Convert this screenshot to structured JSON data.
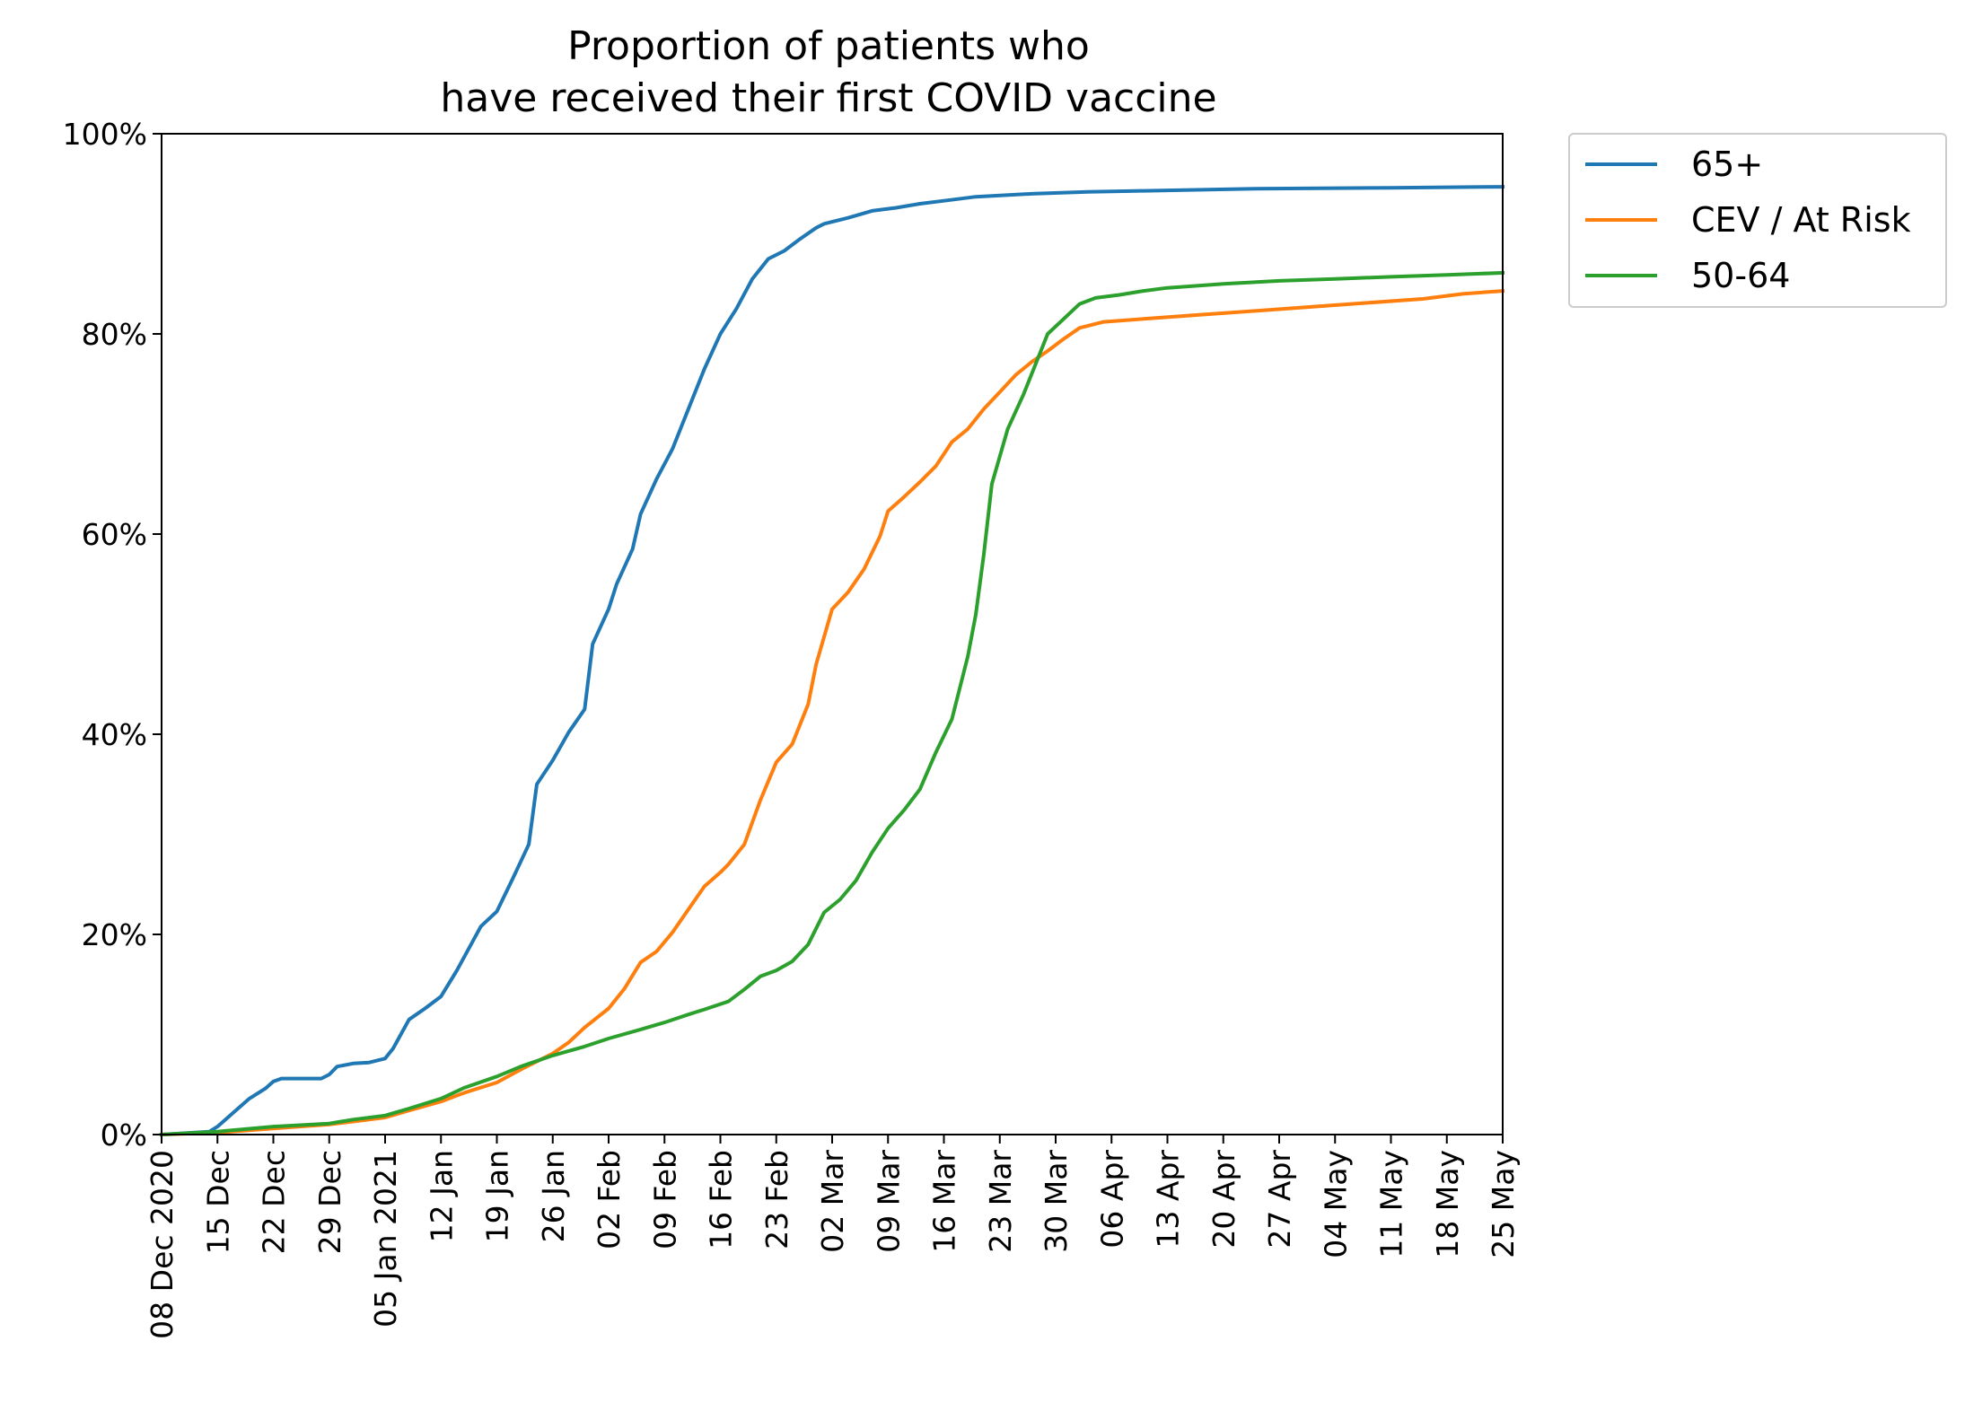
{
  "chart_data": {
    "type": "line",
    "title": [
      "Proportion of patients who",
      "have received their first COVID vaccine"
    ],
    "xlabel": "",
    "ylabel": "",
    "x_ticks": [
      {
        "date": "2020-12-08",
        "label": "08 Dec 2020"
      },
      {
        "date": "2020-12-15",
        "label": "15 Dec"
      },
      {
        "date": "2020-12-22",
        "label": "22 Dec"
      },
      {
        "date": "2020-12-29",
        "label": "29 Dec"
      },
      {
        "date": "2021-01-05",
        "label": "05 Jan 2021"
      },
      {
        "date": "2021-01-12",
        "label": "12 Jan"
      },
      {
        "date": "2021-01-19",
        "label": "19 Jan"
      },
      {
        "date": "2021-01-26",
        "label": "26 Jan"
      },
      {
        "date": "2021-02-02",
        "label": "02 Feb"
      },
      {
        "date": "2021-02-09",
        "label": "09 Feb"
      },
      {
        "date": "2021-02-16",
        "label": "16 Feb"
      },
      {
        "date": "2021-02-23",
        "label": "23 Feb"
      },
      {
        "date": "2021-03-02",
        "label": "02 Mar"
      },
      {
        "date": "2021-03-09",
        "label": "09 Mar"
      },
      {
        "date": "2021-03-16",
        "label": "16 Mar"
      },
      {
        "date": "2021-03-23",
        "label": "23 Mar"
      },
      {
        "date": "2021-03-30",
        "label": "30 Mar"
      },
      {
        "date": "2021-04-06",
        "label": "06 Apr"
      },
      {
        "date": "2021-04-13",
        "label": "13 Apr"
      },
      {
        "date": "2021-04-20",
        "label": "20 Apr"
      },
      {
        "date": "2021-04-27",
        "label": "27 Apr"
      },
      {
        "date": "2021-05-04",
        "label": "04 May"
      },
      {
        "date": "2021-05-11",
        "label": "11 May"
      },
      {
        "date": "2021-05-18",
        "label": "18 May"
      },
      {
        "date": "2021-05-25",
        "label": "25 May"
      }
    ],
    "xlim": [
      "2020-12-08",
      "2021-05-25"
    ],
    "ylim": [
      0,
      100
    ],
    "y_ticks": [
      {
        "value": 0,
        "label": "0%"
      },
      {
        "value": 20,
        "label": "20%"
      },
      {
        "value": 40,
        "label": "40%"
      },
      {
        "value": 60,
        "label": "60%"
      },
      {
        "value": 80,
        "label": "80%"
      },
      {
        "value": 100,
        "label": "100%"
      }
    ],
    "grid": false,
    "legend_position": "outside top-right",
    "series": [
      {
        "name": "65+",
        "color": "#1f77b4",
        "points": [
          [
            "2020-12-08",
            0
          ],
          [
            "2020-12-14",
            0.3
          ],
          [
            "2020-12-15",
            0.8
          ],
          [
            "2020-12-17",
            2.2
          ],
          [
            "2020-12-19",
            3.6
          ],
          [
            "2020-12-21",
            4.6
          ],
          [
            "2020-12-22",
            5.3
          ],
          [
            "2020-12-23",
            5.6
          ],
          [
            "2020-12-28",
            5.6
          ],
          [
            "2020-12-29",
            6
          ],
          [
            "2020-12-30",
            6.8
          ],
          [
            "2021-01-01",
            7.1
          ],
          [
            "2021-01-03",
            7.2
          ],
          [
            "2021-01-05",
            7.6
          ],
          [
            "2021-01-06",
            8.6
          ],
          [
            "2021-01-08",
            11.5
          ],
          [
            "2021-01-10",
            12.6
          ],
          [
            "2021-01-12",
            13.8
          ],
          [
            "2021-01-14",
            16.4
          ],
          [
            "2021-01-17",
            20.8
          ],
          [
            "2021-01-19",
            22.3
          ],
          [
            "2021-01-21",
            25.6
          ],
          [
            "2021-01-23",
            29
          ],
          [
            "2021-01-24",
            35
          ],
          [
            "2021-01-26",
            37.4
          ],
          [
            "2021-01-28",
            40.2
          ],
          [
            "2021-01-30",
            42.5
          ],
          [
            "2021-01-31",
            49
          ],
          [
            "2021-02-02",
            52.5
          ],
          [
            "2021-02-03",
            55
          ],
          [
            "2021-02-05",
            58.5
          ],
          [
            "2021-02-06",
            62
          ],
          [
            "2021-02-08",
            65.5
          ],
          [
            "2021-02-10",
            68.5
          ],
          [
            "2021-02-12",
            72.5
          ],
          [
            "2021-02-14",
            76.5
          ],
          [
            "2021-02-16",
            80
          ],
          [
            "2021-02-18",
            82.5
          ],
          [
            "2021-02-20",
            85.5
          ],
          [
            "2021-02-22",
            87.5
          ],
          [
            "2021-02-24",
            88.3
          ],
          [
            "2021-02-26",
            89.5
          ],
          [
            "2021-02-28",
            90.6
          ],
          [
            "2021-03-01",
            91
          ],
          [
            "2021-03-04",
            91.6
          ],
          [
            "2021-03-07",
            92.3
          ],
          [
            "2021-03-10",
            92.6
          ],
          [
            "2021-03-13",
            93
          ],
          [
            "2021-03-16",
            93.3
          ],
          [
            "2021-03-20",
            93.7
          ],
          [
            "2021-03-27",
            94
          ],
          [
            "2021-04-03",
            94.2
          ],
          [
            "2021-04-10",
            94.3
          ],
          [
            "2021-04-24",
            94.5
          ],
          [
            "2021-05-11",
            94.6
          ],
          [
            "2021-05-25",
            94.7
          ]
        ]
      },
      {
        "name": "CEV / At Risk",
        "color": "#ff7f0e",
        "points": [
          [
            "2020-12-08",
            0
          ],
          [
            "2020-12-15",
            0.2
          ],
          [
            "2020-12-22",
            0.6
          ],
          [
            "2020-12-29",
            1
          ],
          [
            "2021-01-01",
            1.3
          ],
          [
            "2021-01-05",
            1.7
          ],
          [
            "2021-01-08",
            2.4
          ],
          [
            "2021-01-12",
            3.3
          ],
          [
            "2021-01-15",
            4.2
          ],
          [
            "2021-01-19",
            5.2
          ],
          [
            "2021-01-22",
            6.5
          ],
          [
            "2021-01-24",
            7.3
          ],
          [
            "2021-01-26",
            8.1
          ],
          [
            "2021-01-28",
            9.2
          ],
          [
            "2021-01-30",
            10.7
          ],
          [
            "2021-02-02",
            12.6
          ],
          [
            "2021-02-04",
            14.6
          ],
          [
            "2021-02-06",
            17.2
          ],
          [
            "2021-02-08",
            18.3
          ],
          [
            "2021-02-10",
            20.2
          ],
          [
            "2021-02-12",
            22.5
          ],
          [
            "2021-02-14",
            24.8
          ],
          [
            "2021-02-16",
            26.2
          ],
          [
            "2021-02-17",
            27
          ],
          [
            "2021-02-19",
            29
          ],
          [
            "2021-02-21",
            33.4
          ],
          [
            "2021-02-23",
            37.2
          ],
          [
            "2021-02-25",
            39
          ],
          [
            "2021-02-27",
            43
          ],
          [
            "2021-02-28",
            47
          ],
          [
            "2021-03-02",
            52.5
          ],
          [
            "2021-03-04",
            54.2
          ],
          [
            "2021-03-06",
            56.5
          ],
          [
            "2021-03-08",
            59.8
          ],
          [
            "2021-03-09",
            62.3
          ],
          [
            "2021-03-11",
            63.7
          ],
          [
            "2021-03-13",
            65.2
          ],
          [
            "2021-03-15",
            66.8
          ],
          [
            "2021-03-17",
            69.2
          ],
          [
            "2021-03-19",
            70.5
          ],
          [
            "2021-03-21",
            72.5
          ],
          [
            "2021-03-23",
            74.2
          ],
          [
            "2021-03-25",
            75.9
          ],
          [
            "2021-03-27",
            77.2
          ],
          [
            "2021-03-29",
            78.3
          ],
          [
            "2021-03-31",
            79.5
          ],
          [
            "2021-04-02",
            80.6
          ],
          [
            "2021-04-05",
            81.2
          ],
          [
            "2021-04-10",
            81.5
          ],
          [
            "2021-04-17",
            81.9
          ],
          [
            "2021-04-24",
            82.3
          ],
          [
            "2021-05-01",
            82.7
          ],
          [
            "2021-05-08",
            83.1
          ],
          [
            "2021-05-15",
            83.5
          ],
          [
            "2021-05-20",
            84
          ],
          [
            "2021-05-25",
            84.3
          ]
        ]
      },
      {
        "name": "50-64",
        "color": "#2ca02c",
        "points": [
          [
            "2020-12-08",
            0
          ],
          [
            "2020-12-15",
            0.3
          ],
          [
            "2020-12-22",
            0.8
          ],
          [
            "2020-12-29",
            1.1
          ],
          [
            "2021-01-01",
            1.5
          ],
          [
            "2021-01-05",
            1.9
          ],
          [
            "2021-01-08",
            2.6
          ],
          [
            "2021-01-12",
            3.6
          ],
          [
            "2021-01-15",
            4.7
          ],
          [
            "2021-01-19",
            5.8
          ],
          [
            "2021-01-22",
            6.8
          ],
          [
            "2021-01-26",
            7.9
          ],
          [
            "2021-01-30",
            8.8
          ],
          [
            "2021-02-02",
            9.6
          ],
          [
            "2021-02-06",
            10.5
          ],
          [
            "2021-02-09",
            11.2
          ],
          [
            "2021-02-12",
            12
          ],
          [
            "2021-02-14",
            12.5
          ],
          [
            "2021-02-17",
            13.3
          ],
          [
            "2021-02-19",
            14.5
          ],
          [
            "2021-02-21",
            15.8
          ],
          [
            "2021-02-23",
            16.4
          ],
          [
            "2021-02-25",
            17.3
          ],
          [
            "2021-02-27",
            19
          ],
          [
            "2021-03-01",
            22.2
          ],
          [
            "2021-03-03",
            23.5
          ],
          [
            "2021-03-05",
            25.4
          ],
          [
            "2021-03-07",
            28.2
          ],
          [
            "2021-03-09",
            30.6
          ],
          [
            "2021-03-11",
            32.4
          ],
          [
            "2021-03-13",
            34.5
          ],
          [
            "2021-03-15",
            38.2
          ],
          [
            "2021-03-17",
            41.5
          ],
          [
            "2021-03-19",
            47.8
          ],
          [
            "2021-03-20",
            52
          ],
          [
            "2021-03-21",
            58
          ],
          [
            "2021-03-22",
            65
          ],
          [
            "2021-03-24",
            70.5
          ],
          [
            "2021-03-26",
            74
          ],
          [
            "2021-03-28",
            78
          ],
          [
            "2021-03-29",
            80
          ],
          [
            "2021-03-31",
            81.5
          ],
          [
            "2021-04-02",
            83
          ],
          [
            "2021-04-04",
            83.6
          ],
          [
            "2021-04-07",
            83.9
          ],
          [
            "2021-04-10",
            84.3
          ],
          [
            "2021-04-13",
            84.6
          ],
          [
            "2021-04-20",
            85
          ],
          [
            "2021-04-27",
            85.3
          ],
          [
            "2021-05-04",
            85.5
          ],
          [
            "2021-05-11",
            85.7
          ],
          [
            "2021-05-18",
            85.9
          ],
          [
            "2021-05-25",
            86.1
          ]
        ]
      }
    ]
  }
}
